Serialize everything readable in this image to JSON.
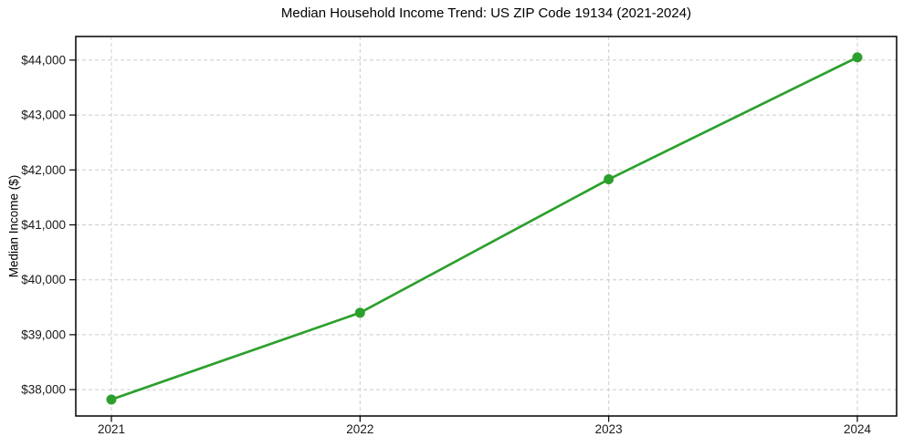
{
  "chart_data": {
    "type": "line",
    "title": "Median Household Income Trend: US ZIP Code 19134 (2021-2024)",
    "xlabel": "",
    "ylabel": "Median Income ($)",
    "x": [
      2021,
      2022,
      2023,
      2024
    ],
    "xtick_labels": [
      "2021",
      "2022",
      "2023",
      "2024"
    ],
    "values": [
      37820,
      39400,
      41830,
      44050
    ],
    "yticks": [
      38000,
      39000,
      40000,
      41000,
      42000,
      43000,
      44000
    ],
    "ytick_labels": [
      "$38,000",
      "$39,000",
      "$40,000",
      "$41,000",
      "$42,000",
      "$43,000",
      "$44,000"
    ],
    "ylim": [
      37520,
      44430
    ],
    "grid": true,
    "grid_style": "dashed",
    "legend": "none",
    "colors": {
      "line": "#2ca02c",
      "marker": "#2ca02c",
      "grid": "#cccccc",
      "axis": "#000000",
      "text": "#1a1a1a",
      "background": "#ffffff"
    }
  }
}
